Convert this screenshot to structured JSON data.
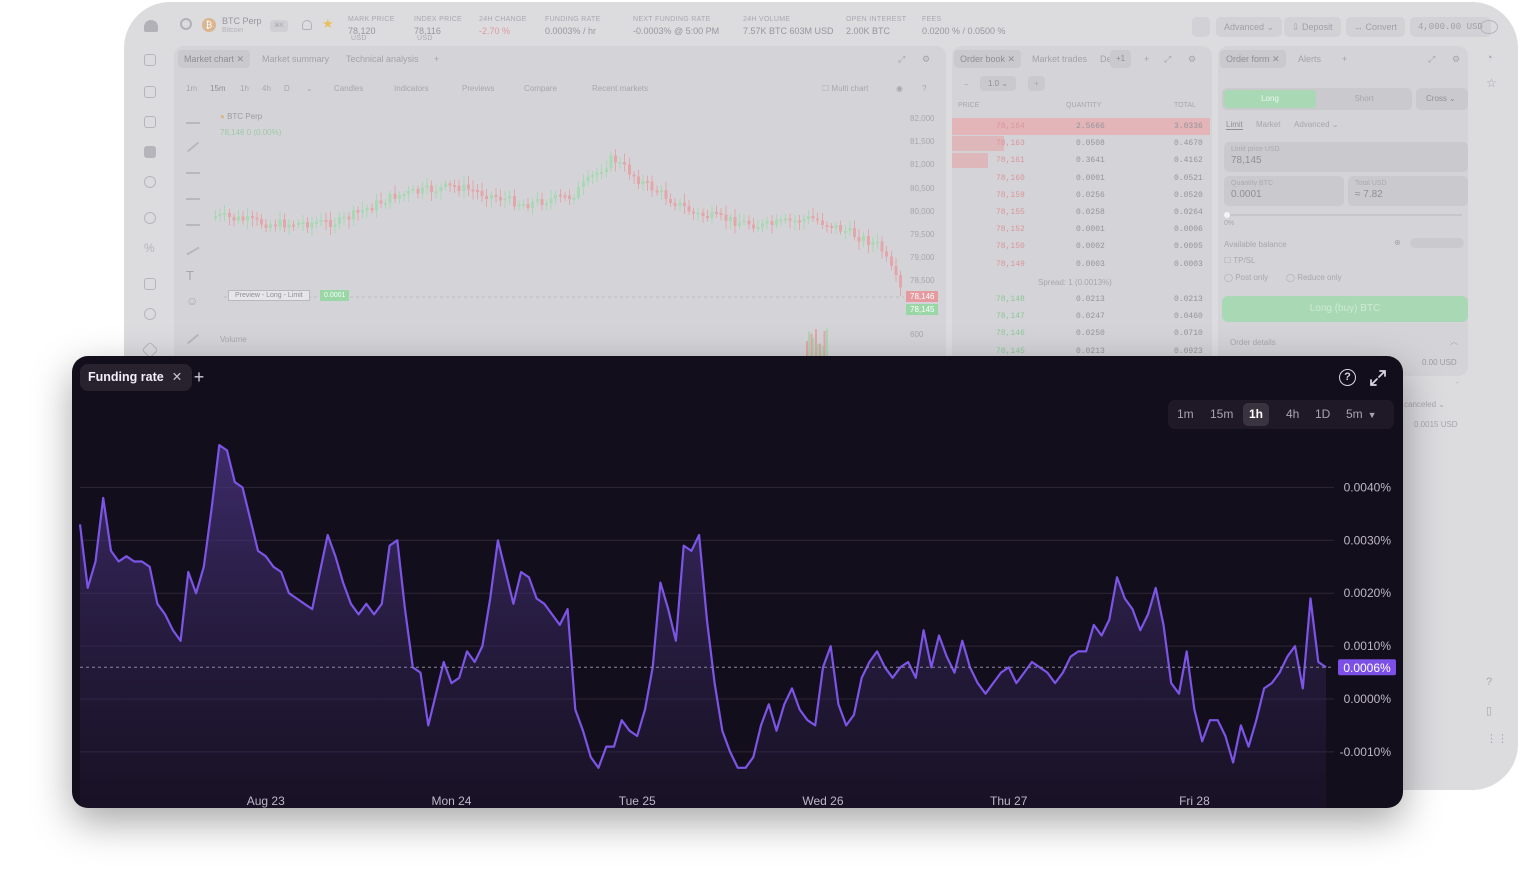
{
  "app": {
    "pair": "BTC Perp",
    "pair_sub": "Bitcoin",
    "kbd": "⌘K",
    "stats": [
      {
        "label": "MARK PRICE",
        "value": "78,120",
        "unit": "USD"
      },
      {
        "label": "INDEX PRICE",
        "value": "78,116",
        "unit": "USD"
      },
      {
        "label": "24H CHANGE",
        "value": "-2.70 %",
        "unit": ""
      },
      {
        "label": "FUNDING RATE",
        "value": "0.0003% / hr",
        "unit": ""
      },
      {
        "label": "NEXT FUNDING RATE",
        "value": "-0.0003% @ 5:00 PM",
        "unit": ""
      },
      {
        "label": "24H VOLUME",
        "value": "7.57K BTC  603M USD",
        "unit": ""
      },
      {
        "label": "OPEN INTEREST",
        "value": "2.00K BTC",
        "unit": ""
      },
      {
        "label": "FEES",
        "value": "0.0200 % / 0.0500 %",
        "unit": ""
      }
    ],
    "top_right": {
      "advanced": "Advanced",
      "deposit": "Deposit",
      "convert": "Convert",
      "balance": "4,000.00 USD"
    },
    "chart_panel": {
      "tabs": [
        "Market chart",
        "Market summary",
        "Technical analysis"
      ],
      "timeframes": [
        "1m",
        "15m",
        "1h",
        "4h",
        "D"
      ],
      "tools": [
        "Candles",
        "Indicators",
        "Previews",
        "Compare",
        "Recent markets"
      ],
      "multi_chart": "Multi chart",
      "legend_title": "BTC Perp",
      "legend_value": "78,146  0 (0.00%)",
      "price_axis": [
        "82,000",
        "81,500",
        "81,000",
        "80,500",
        "80,000",
        "79,500",
        "79,000",
        "78,500"
      ],
      "price_tag_sell": "78,146",
      "price_tag_buy": "78,145",
      "preview_label": "Preview - Long - Limit",
      "preview_qty": "0.0001",
      "volume_label": "Volume",
      "volume_axis": "600"
    },
    "order_book": {
      "tabs": [
        "Order book",
        "Market trades",
        "De"
      ],
      "plus_count": "+1",
      "step": "1.0",
      "headers": [
        "PRICE",
        "QUANTITY",
        "TOTAL"
      ],
      "asks": [
        {
          "price": "78,164",
          "qty": "2.5666",
          "total": "3.0336"
        },
        {
          "price": "78,163",
          "qty": "0.0508",
          "total": "0.4670"
        },
        {
          "price": "78,161",
          "qty": "0.3641",
          "total": "0.4162"
        },
        {
          "price": "78,160",
          "qty": "0.0001",
          "total": "0.0521"
        },
        {
          "price": "78,159",
          "qty": "0.0256",
          "total": "0.0520"
        },
        {
          "price": "78,155",
          "qty": "0.0258",
          "total": "0.0264"
        },
        {
          "price": "78,152",
          "qty": "0.0001",
          "total": "0.0006"
        },
        {
          "price": "78,150",
          "qty": "0.0002",
          "total": "0.0005"
        },
        {
          "price": "78,149",
          "qty": "0.0003",
          "total": "0.0003"
        }
      ],
      "spread": "Spread: 1 (0.0013%)",
      "bids": [
        {
          "price": "78,148",
          "qty": "0.0213",
          "total": "0.0213"
        },
        {
          "price": "78,147",
          "qty": "0.0247",
          "total": "0.0460"
        },
        {
          "price": "78,146",
          "qty": "0.0250",
          "total": "0.0710"
        },
        {
          "price": "78,145",
          "qty": "0.0213",
          "total": "0.0923"
        }
      ]
    },
    "order_form": {
      "tabs": [
        "Order form",
        "Alerts"
      ],
      "sides": [
        "Long",
        "Short"
      ],
      "margin": "Cross",
      "types": [
        "Limit",
        "Market",
        "Advanced"
      ],
      "limit_label": "Limit price USD",
      "limit_value": "78,145",
      "qty_label": "Quantity BTC",
      "qty_value": "0.0001",
      "total_label": "Total USD",
      "total_value": "≈ 7.82",
      "slider_pct": "0%",
      "available": "Available balance",
      "tpsl": "TP/SL",
      "post_only": "Post only",
      "reduce_only": "Reduce only",
      "submit": "Long (buy) BTC",
      "details": "Order details",
      "detail_value": "0.00 USD",
      "detail_dash": "-",
      "canceled": "canceled",
      "fee_value": "0.0015 USD"
    }
  },
  "funding_card": {
    "tab_label": "Funding rate",
    "timeframes": [
      "1m",
      "15m",
      "1h",
      "4h",
      "1D"
    ],
    "interval": "5m",
    "active_timeframe": "1h"
  },
  "chart_data": {
    "type": "area",
    "yunit": "%",
    "ylim": [
      -0.0014,
      0.0048
    ],
    "y_ticks": [
      "0.0040%",
      "0.0030%",
      "0.0020%",
      "0.0010%",
      "0.0000%",
      "-0.0010%"
    ],
    "y_tick_values": [
      0.004,
      0.003,
      0.002,
      0.001,
      0.0,
      -0.001
    ],
    "x_ticks": [
      "Aug 23",
      "Mon 24",
      "Tue 25",
      "Wed 26",
      "Thu 27",
      "Fri 28"
    ],
    "x_tick_positions": [
      24,
      48,
      72,
      96,
      120,
      144
    ],
    "current_value": 0.0006,
    "current_label": "0.0006%",
    "series": [
      {
        "values": [
          0.0033,
          0.0021,
          0.0026,
          0.0038,
          0.0028,
          0.0026,
          0.0027,
          0.0026,
          0.0026,
          0.0025,
          0.0018,
          0.0016,
          0.0013,
          0.0011,
          0.0024,
          0.002,
          0.0025,
          0.0036,
          0.0048,
          0.0047,
          0.0041,
          0.004,
          0.0034,
          0.0028,
          0.0027,
          0.0025,
          0.0024,
          0.002,
          0.0019,
          0.0018,
          0.0017,
          0.0024,
          0.0031,
          0.0027,
          0.0022,
          0.0018,
          0.0016,
          0.0018,
          0.0016,
          0.0018,
          0.0029,
          0.003,
          0.0017,
          0.0006,
          0.0005,
          -0.0005,
          0.0001,
          0.0007,
          0.0003,
          0.0004,
          0.0009,
          0.0007,
          0.001,
          0.0019,
          0.003,
          0.0024,
          0.0018,
          0.0024,
          0.0023,
          0.0019,
          0.0018,
          0.0016,
          0.0014,
          0.0017,
          -0.0002,
          -0.0006,
          -0.0011,
          -0.0013,
          -0.0009,
          -0.0009,
          -0.0004,
          -0.0006,
          -0.0007,
          -0.0002,
          0.0006,
          0.0022,
          0.0017,
          0.0011,
          0.0029,
          0.0028,
          0.0031,
          0.0015,
          0.0003,
          -0.0006,
          -0.001,
          -0.0013,
          -0.0013,
          -0.0011,
          -0.0005,
          -0.0001,
          -0.0006,
          -0.0001,
          0.0002,
          -0.0002,
          -0.0004,
          -0.0005,
          0.0006,
          0.001,
          -0.0001,
          -0.0005,
          -0.0003,
          0.0004,
          0.0007,
          0.0009,
          0.0006,
          0.0004,
          0.0006,
          0.0007,
          0.0004,
          0.0013,
          0.0006,
          0.0012,
          0.0008,
          0.0005,
          0.0011,
          0.0006,
          0.0003,
          0.0001,
          0.0003,
          0.0005,
          0.0006,
          0.0003,
          0.0005,
          0.0007,
          0.0006,
          0.0005,
          0.0003,
          0.0005,
          0.0008,
          0.0009,
          0.0009,
          0.0014,
          0.0012,
          0.0015,
          0.0023,
          0.0019,
          0.0017,
          0.0013,
          0.0016,
          0.0021,
          0.0014,
          0.0003,
          0.0001,
          0.0009,
          -0.0002,
          -0.0008,
          -0.0004,
          -0.0004,
          -0.0007,
          -0.0012,
          -0.0005,
          -0.0009,
          -0.0004,
          0.0002,
          0.0003,
          0.0005,
          0.0008,
          0.001,
          0.0002,
          0.0019,
          0.0007,
          0.0006
        ]
      }
    ]
  }
}
